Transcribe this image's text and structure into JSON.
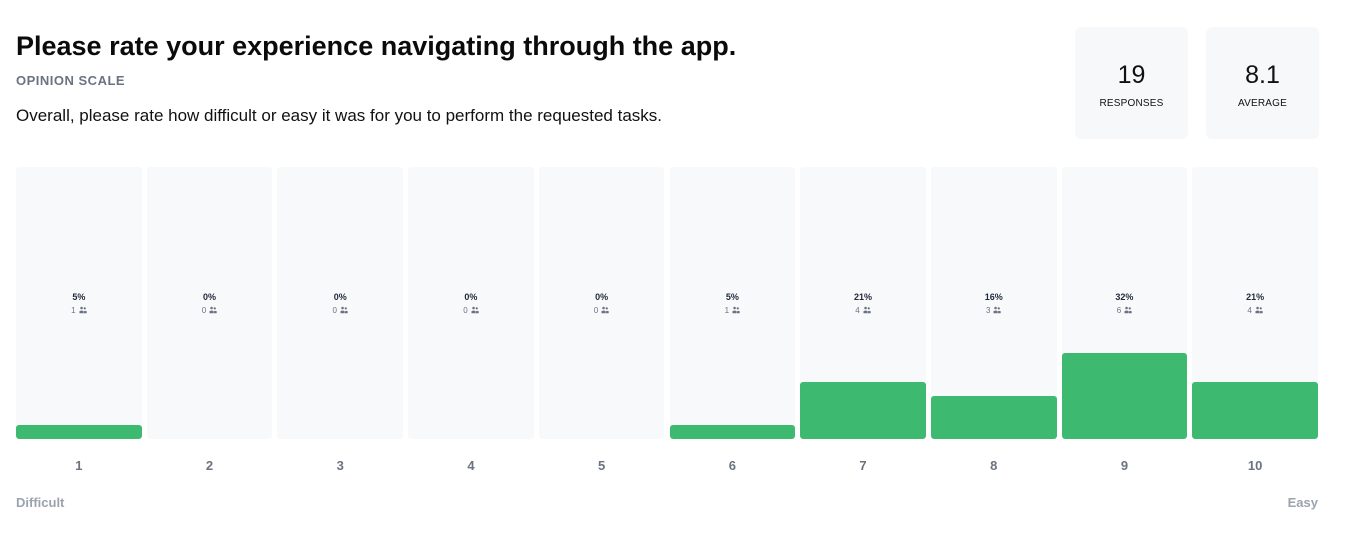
{
  "question": {
    "title": "Please rate your experience navigating through the app.",
    "type_label": "OPINION SCALE",
    "description": "Overall, please rate how difficult or easy it was for you to perform the requested tasks."
  },
  "stats": {
    "responses": {
      "value": "19",
      "label": "RESPONSES"
    },
    "average": {
      "value": "8.1",
      "label": "AVERAGE"
    }
  },
  "scale": {
    "min_label": "Difficult",
    "max_label": "Easy"
  },
  "colors": {
    "bar_fill": "#3dba70",
    "bar_background": "#f8f9fb",
    "card_background": "#f7f8fa"
  },
  "chart_data": {
    "type": "bar",
    "categories": [
      "1",
      "2",
      "3",
      "4",
      "5",
      "6",
      "7",
      "8",
      "9",
      "10"
    ],
    "values": [
      1,
      0,
      0,
      0,
      0,
      1,
      4,
      3,
      6,
      4
    ],
    "percent_labels": [
      "5%",
      "0%",
      "0%",
      "0%",
      "0%",
      "5%",
      "21%",
      "16%",
      "32%",
      "21%"
    ],
    "count_labels": [
      "1",
      "0",
      "0",
      "0",
      "0",
      "1",
      "4",
      "3",
      "6",
      "4"
    ],
    "count_icon": "people-icon",
    "ylim": [
      0,
      19
    ]
  }
}
